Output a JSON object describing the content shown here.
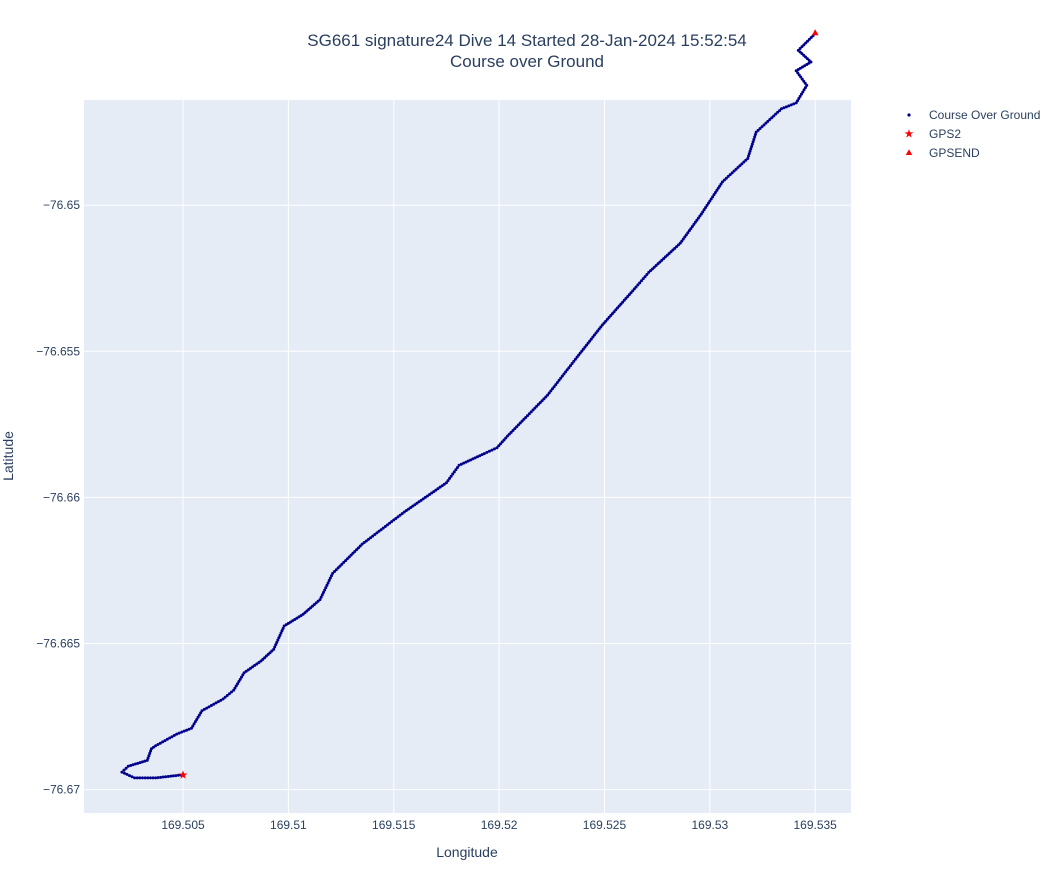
{
  "chart_data": {
    "type": "scatter",
    "title": "SG661 signature24 Dive 14 Started 28-Jan-2024 15:52:54",
    "subtitle": "Course over Ground",
    "xlabel": "Longitude",
    "ylabel": "Latitude",
    "xlim": [
      169.5003,
      169.5367
    ],
    "ylim": [
      -76.6708,
      -76.6464
    ],
    "x_ticks": [
      169.505,
      169.51,
      169.515,
      169.52,
      169.525,
      169.53,
      169.535
    ],
    "x_tick_labels": [
      "169.505",
      "169.51",
      "169.515",
      "169.52",
      "169.525",
      "169.53",
      "169.535"
    ],
    "y_ticks": [
      -76.65,
      -76.655,
      -76.66,
      -76.665,
      -76.67
    ],
    "y_tick_labels": [
      "−76.65",
      "−76.655",
      "−76.66",
      "−76.665",
      "−76.67"
    ],
    "grid": true,
    "legend_position": "top-right outside",
    "colors": {
      "plot_bg": "#E5ECF6",
      "grid": "#ffffff",
      "track": "#00008B",
      "marker": "#FF0000",
      "text": "#2a3f5f"
    },
    "series": [
      {
        "name": "Course Over Ground",
        "marker": "dot",
        "color": "#00008B",
        "x": [
          169.5049,
          169.5037,
          169.5027,
          169.5021,
          169.5024,
          169.5033,
          169.5035,
          169.5037,
          169.5047,
          169.5054,
          169.5059,
          169.5069,
          169.5074,
          169.5079,
          169.5087,
          169.5093,
          169.5098,
          169.5107,
          169.5115,
          169.5121,
          169.5135,
          169.5155,
          169.5175,
          169.5181,
          169.5193,
          169.5199,
          169.5204,
          169.5223,
          169.5237,
          169.5249,
          169.5265,
          169.5271,
          169.5286,
          169.5296,
          169.5306,
          169.5318,
          169.5322,
          169.5334,
          169.5341,
          169.5346,
          169.5341,
          169.5348,
          169.5342,
          169.5349
        ],
        "y": [
          -76.6695,
          -76.6696,
          -76.6696,
          -76.6694,
          -76.6692,
          -76.669,
          -76.6686,
          -76.6685,
          -76.6681,
          -76.6679,
          -76.6673,
          -76.6669,
          -76.6666,
          -76.666,
          -76.6656,
          -76.6652,
          -76.6644,
          -76.664,
          -76.6635,
          -76.6626,
          -76.6616,
          -76.6605,
          -76.6595,
          -76.6589,
          -76.6585,
          -76.6583,
          -76.6579,
          -76.6565,
          -76.6552,
          -76.6541,
          -76.6528,
          -76.6523,
          -76.6513,
          -76.6503,
          -76.6492,
          -76.6484,
          -76.6475,
          -76.6467,
          -76.6465,
          -76.6459,
          -76.6454,
          -76.6451,
          -76.6447,
          -76.6442
        ]
      },
      {
        "name": "GPS2",
        "marker": "star",
        "color": "#FF0000",
        "x": [
          169.505
        ],
        "y": [
          -76.6695
        ]
      },
      {
        "name": "GPSEND",
        "marker": "triangle-up",
        "color": "#FF0000",
        "x": [
          169.535
        ],
        "y": [
          -76.6441
        ]
      }
    ]
  }
}
